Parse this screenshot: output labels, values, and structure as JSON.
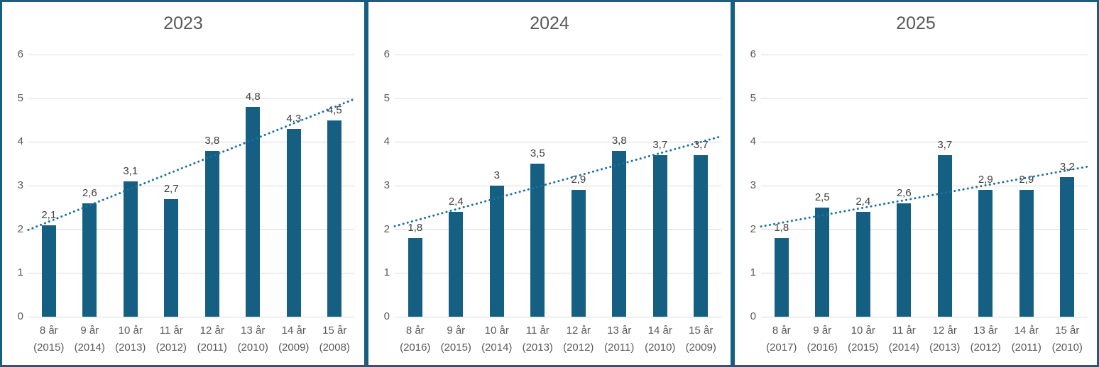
{
  "colors": {
    "bar": "#156082",
    "trendline": "#1d6fa0",
    "gridline": "#d9d9d9",
    "axis_text": "#595959",
    "data_label": "#404040",
    "title_text": "#595959",
    "panel_border": "#156082",
    "background": "#ffffff"
  },
  "chart_data": [
    {
      "type": "bar",
      "title": "2023",
      "categories": [
        "8 år",
        "9 år",
        "10 år",
        "11 år",
        "12 år",
        "13 år",
        "14 år",
        "15 år"
      ],
      "category_sublabels": [
        "(2015)",
        "(2014)",
        "(2013)",
        "(2012)",
        "(2011)",
        "(2010)",
        "(2009)",
        "(2008)"
      ],
      "values": [
        2.1,
        2.6,
        3.1,
        2.7,
        3.8,
        4.8,
        4.3,
        4.5
      ],
      "value_labels": [
        "2,1",
        "2,6",
        "3,1",
        "2,7",
        "3,8",
        "4,8",
        "4,3",
        "4,5"
      ],
      "ylim": [
        0,
        6
      ],
      "yticks": [
        0,
        1,
        2,
        3,
        4,
        5,
        6
      ],
      "grid": true,
      "legend": "none",
      "trendline": "linear-dotted"
    },
    {
      "type": "bar",
      "title": "2024",
      "categories": [
        "8 år",
        "9 år",
        "10 år",
        "11 år",
        "12 år",
        "13 år",
        "14 år",
        "15 år"
      ],
      "category_sublabels": [
        "(2016)",
        "(2015)",
        "(2014)",
        "(2013)",
        "(2012)",
        "(2011)",
        "(2010)",
        "(2009)"
      ],
      "values": [
        1.8,
        2.4,
        3,
        3.5,
        2.9,
        3.8,
        3.7,
        3.7
      ],
      "value_labels": [
        "1,8",
        "2,4",
        "3",
        "3,5",
        "2,9",
        "3,8",
        "3,7",
        "3,7"
      ],
      "ylim": [
        0,
        6
      ],
      "yticks": [
        0,
        1,
        2,
        3,
        4,
        5,
        6
      ],
      "grid": true,
      "legend": "none",
      "trendline": "linear-dotted"
    },
    {
      "type": "bar",
      "title": "2025",
      "categories": [
        "8 år",
        "9 år",
        "10 år",
        "11 år",
        "12 år",
        "13 år",
        "14 år",
        "15 år"
      ],
      "category_sublabels": [
        "(2017)",
        "(2016)",
        "(2015)",
        "(2014)",
        "(2013)",
        "(2012)",
        "(2011)",
        "(2010)"
      ],
      "values": [
        1.8,
        2.5,
        2.4,
        2.6,
        3.7,
        2.9,
        2.9,
        3.2
      ],
      "value_labels": [
        "1,8",
        "2,5",
        "2,4",
        "2,6",
        "3,7",
        "2,9",
        "2,9",
        "3,2"
      ],
      "ylim": [
        0,
        6
      ],
      "yticks": [
        0,
        1,
        2,
        3,
        4,
        5,
        6
      ],
      "grid": true,
      "legend": "none",
      "trendline": "linear-dotted"
    }
  ]
}
